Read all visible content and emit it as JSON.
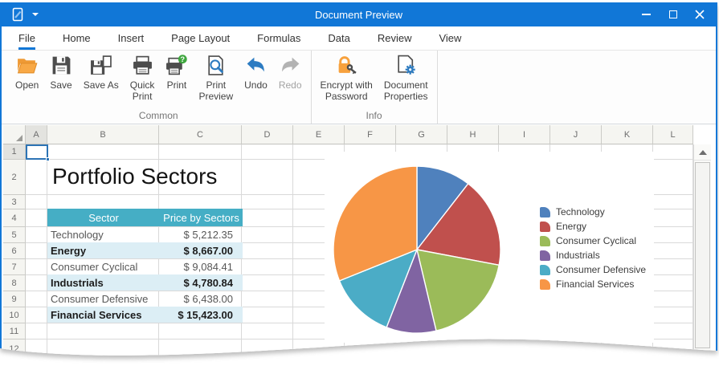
{
  "window": {
    "title": "Document Preview"
  },
  "ribbon": {
    "tabs": [
      {
        "label": "File",
        "selected": true
      },
      {
        "label": "Home"
      },
      {
        "label": "Insert"
      },
      {
        "label": "Page Layout"
      },
      {
        "label": "Formulas"
      },
      {
        "label": "Data"
      },
      {
        "label": "Review"
      },
      {
        "label": "View"
      }
    ],
    "groups": [
      {
        "caption": "Common",
        "buttons": [
          {
            "label": "Open",
            "icon": "open-folder-icon"
          },
          {
            "label": "Save",
            "icon": "save-icon"
          },
          {
            "label": "Save As",
            "icon": "save-as-icon"
          },
          {
            "label": "Quick\nPrint",
            "icon": "quick-print-icon"
          },
          {
            "label": "Print",
            "icon": "print-help-icon"
          },
          {
            "label": "Print\nPreview",
            "icon": "print-preview-icon"
          },
          {
            "label": "Undo",
            "icon": "undo-arrow-icon"
          },
          {
            "label": "Redo",
            "icon": "redo-arrow-icon",
            "disabled": true
          }
        ]
      },
      {
        "caption": "Info",
        "buttons": [
          {
            "label": "Encrypt with\nPassword",
            "icon": "lock-key-icon"
          },
          {
            "label": "Document\nProperties",
            "icon": "document-gear-icon"
          }
        ]
      }
    ]
  },
  "spreadsheet": {
    "column_headers": [
      "A",
      "B",
      "C",
      "D",
      "E",
      "F",
      "G",
      "H",
      "I",
      "J",
      "K",
      "L"
    ],
    "row_headers": [
      "1",
      "2",
      "3",
      "4",
      "5",
      "6",
      "7",
      "8",
      "9",
      "10",
      "11",
      "12"
    ],
    "active_cell": "A1",
    "title_cell": {
      "ref": "B2",
      "text": "Portfolio Sectors"
    },
    "table": {
      "header": [
        "Sector",
        "Price by Sectors"
      ],
      "rows": [
        [
          "Technology",
          "$ 5,212.35"
        ],
        [
          "Energy",
          "$ 8,667.00"
        ],
        [
          "Consumer Cyclical",
          "$ 9,084.41"
        ],
        [
          "Industrials",
          "$ 4,780.84"
        ],
        [
          "Consumer Defensive",
          "$ 6,438.00"
        ],
        [
          "Financial Services",
          "$ 15,423.00"
        ]
      ],
      "header_color": "#45AEC5",
      "band_color": "#DCEEF5"
    }
  },
  "chart_data": {
    "type": "pie",
    "title": "",
    "categories": [
      "Technology",
      "Energy",
      "Consumer Cyclical",
      "Industrials",
      "Consumer Defensive",
      "Financial Services"
    ],
    "values": [
      5212.35,
      8667.0,
      9084.41,
      4780.84,
      6438.0,
      15423.0
    ],
    "total": 49605.6,
    "colors": [
      "#4F81BD",
      "#C0504D",
      "#9BBB59",
      "#8064A2",
      "#4BACC6",
      "#F79646"
    ],
    "legend_position": "right",
    "start_angle": "top",
    "direction": "clockwise"
  }
}
